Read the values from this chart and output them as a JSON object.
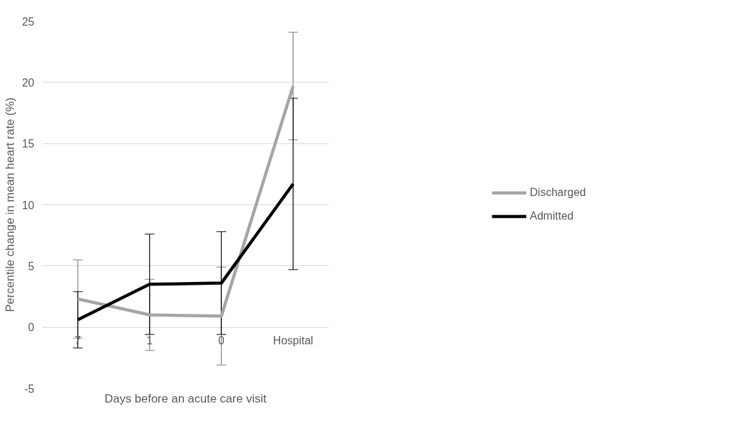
{
  "chart_data": {
    "type": "line",
    "xlabel": "Days before an acute care visit",
    "ylabel": "Percentile change in mean heart rate (%)",
    "categories": [
      "7",
      "1",
      "0",
      "Hospital"
    ],
    "ylim": [
      -5,
      25
    ],
    "yticks": [
      -5,
      0,
      5,
      10,
      15,
      20,
      25
    ],
    "grid": "y",
    "legend": "right",
    "marker": "none",
    "line_style": "solid",
    "series": [
      {
        "name": "Discharged",
        "color": "#a5a5a5",
        "values": [
          2.3,
          1.0,
          0.9,
          19.7
        ],
        "errors": [
          3.2,
          2.9,
          4.0,
          4.4
        ]
      },
      {
        "name": "Admitted",
        "color": "#000000",
        "values": [
          0.6,
          3.5,
          3.6,
          11.7
        ],
        "errors": [
          2.3,
          4.1,
          4.2,
          7.0
        ]
      }
    ]
  }
}
